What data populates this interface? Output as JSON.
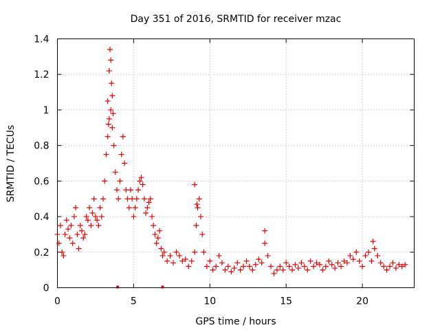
{
  "chart_data": {
    "type": "scatter",
    "title": "Day 351 of 2016, SRMTID for receiver mzac",
    "xlabel": "GPS time / hours",
    "ylabel": "SRMTID / TECUs",
    "xlim": [
      0,
      23.4
    ],
    "ylim": [
      0,
      1.4
    ],
    "xticks": [
      0,
      5,
      10,
      15,
      20
    ],
    "xtick_labels": [
      "0",
      "5",
      "10",
      "15",
      "20"
    ],
    "yticks": [
      0,
      0.2,
      0.4,
      0.6,
      0.8,
      1.0,
      1.2,
      1.4
    ],
    "ytick_labels": [
      "0",
      "0.2",
      "0.4",
      "0.6",
      "0.8",
      "1",
      "1.2",
      "1.4"
    ],
    "grid": true,
    "marker": "+",
    "color": "#e00000",
    "series": [
      {
        "name": "SRMTID",
        "x": [
          0.0,
          0.1,
          0.2,
          0.3,
          0.4,
          0.5,
          0.6,
          0.7,
          0.8,
          0.9,
          1.0,
          1.1,
          1.2,
          1.3,
          1.4,
          1.5,
          1.6,
          1.7,
          1.8,
          1.9,
          2.0,
          2.1,
          2.2,
          2.3,
          2.4,
          2.5,
          2.6,
          2.7,
          2.8,
          2.9,
          3.0,
          3.1,
          3.2,
          3.3,
          3.4,
          3.5,
          3.6,
          3.7,
          3.8,
          3.9,
          4.0,
          4.1,
          4.2,
          4.3,
          4.4,
          4.5,
          4.6,
          4.7,
          4.8,
          4.9,
          5.0,
          5.1,
          5.2,
          5.3,
          5.4,
          5.5,
          5.6,
          5.7,
          5.8,
          5.9,
          6.0,
          6.1,
          6.2,
          6.3,
          6.4,
          6.5,
          6.6,
          6.7,
          6.8,
          6.9,
          7.0,
          7.2,
          7.4,
          7.6,
          7.8,
          8.0,
          8.2,
          8.4,
          8.6,
          8.8,
          9.0,
          9.1,
          9.2,
          9.3,
          9.4,
          9.5,
          9.6,
          9.8,
          10.0,
          10.2,
          10.4,
          10.6,
          10.8,
          11.0,
          11.2,
          11.4,
          11.6,
          11.8,
          12.0,
          12.2,
          12.4,
          12.6,
          12.8,
          13.0,
          13.2,
          13.4,
          13.6,
          13.8,
          14.0,
          14.2,
          14.4,
          14.6,
          14.8,
          15.0,
          15.2,
          15.4,
          15.6,
          15.8,
          16.0,
          16.2,
          16.4,
          16.6,
          16.8,
          17.0,
          17.2,
          17.4,
          17.6,
          17.8,
          18.0,
          18.2,
          18.4,
          18.6,
          18.8,
          19.0,
          19.2,
          19.4,
          19.6,
          19.8,
          20.0,
          20.2,
          20.4,
          20.6,
          20.8,
          21.0,
          21.2,
          21.4,
          21.6,
          21.8,
          22.0,
          22.2,
          22.4,
          22.6,
          22.8,
          3.4,
          3.45,
          3.5,
          3.55,
          3.6,
          3.3,
          3.65,
          3.35,
          9.0,
          9.15,
          13.6,
          20.7
        ],
        "y": [
          0.3,
          0.25,
          0.35,
          0.2,
          0.18,
          0.3,
          0.38,
          0.33,
          0.28,
          0.35,
          0.25,
          0.4,
          0.45,
          0.3,
          0.22,
          0.35,
          0.32,
          0.28,
          0.3,
          0.4,
          0.38,
          0.45,
          0.35,
          0.42,
          0.5,
          0.4,
          0.38,
          0.35,
          0.45,
          0.4,
          0.5,
          0.6,
          0.75,
          0.85,
          0.95,
          1.0,
          0.9,
          0.8,
          0.65,
          0.55,
          0.5,
          0.6,
          0.75,
          0.85,
          0.7,
          0.55,
          0.5,
          0.45,
          0.55,
          0.5,
          0.4,
          0.45,
          0.5,
          0.55,
          0.6,
          0.62,
          0.58,
          0.5,
          0.42,
          0.45,
          0.48,
          0.5,
          0.4,
          0.35,
          0.3,
          0.25,
          0.28,
          0.32,
          0.22,
          0.18,
          0.2,
          0.15,
          0.18,
          0.14,
          0.2,
          0.18,
          0.15,
          0.16,
          0.12,
          0.15,
          0.2,
          0.35,
          0.45,
          0.5,
          0.4,
          0.3,
          0.2,
          0.12,
          0.15,
          0.1,
          0.12,
          0.18,
          0.14,
          0.1,
          0.12,
          0.09,
          0.11,
          0.14,
          0.1,
          0.12,
          0.15,
          0.12,
          0.1,
          0.13,
          0.16,
          0.14,
          0.25,
          0.18,
          0.12,
          0.08,
          0.1,
          0.12,
          0.1,
          0.14,
          0.12,
          0.1,
          0.13,
          0.11,
          0.14,
          0.12,
          0.1,
          0.15,
          0.12,
          0.14,
          0.13,
          0.1,
          0.12,
          0.15,
          0.13,
          0.11,
          0.14,
          0.12,
          0.15,
          0.14,
          0.18,
          0.16,
          0.2,
          0.15,
          0.12,
          0.18,
          0.2,
          0.15,
          0.22,
          0.18,
          0.14,
          0.12,
          0.1,
          0.12,
          0.14,
          0.11,
          0.13,
          0.12,
          0.13,
          1.22,
          1.34,
          1.28,
          1.15,
          1.08,
          1.05,
          0.98,
          0.92,
          0.58,
          0.47,
          0.32,
          0.26
        ]
      }
    ],
    "zero_markers_x": [
      3.95,
      6.9
    ]
  }
}
